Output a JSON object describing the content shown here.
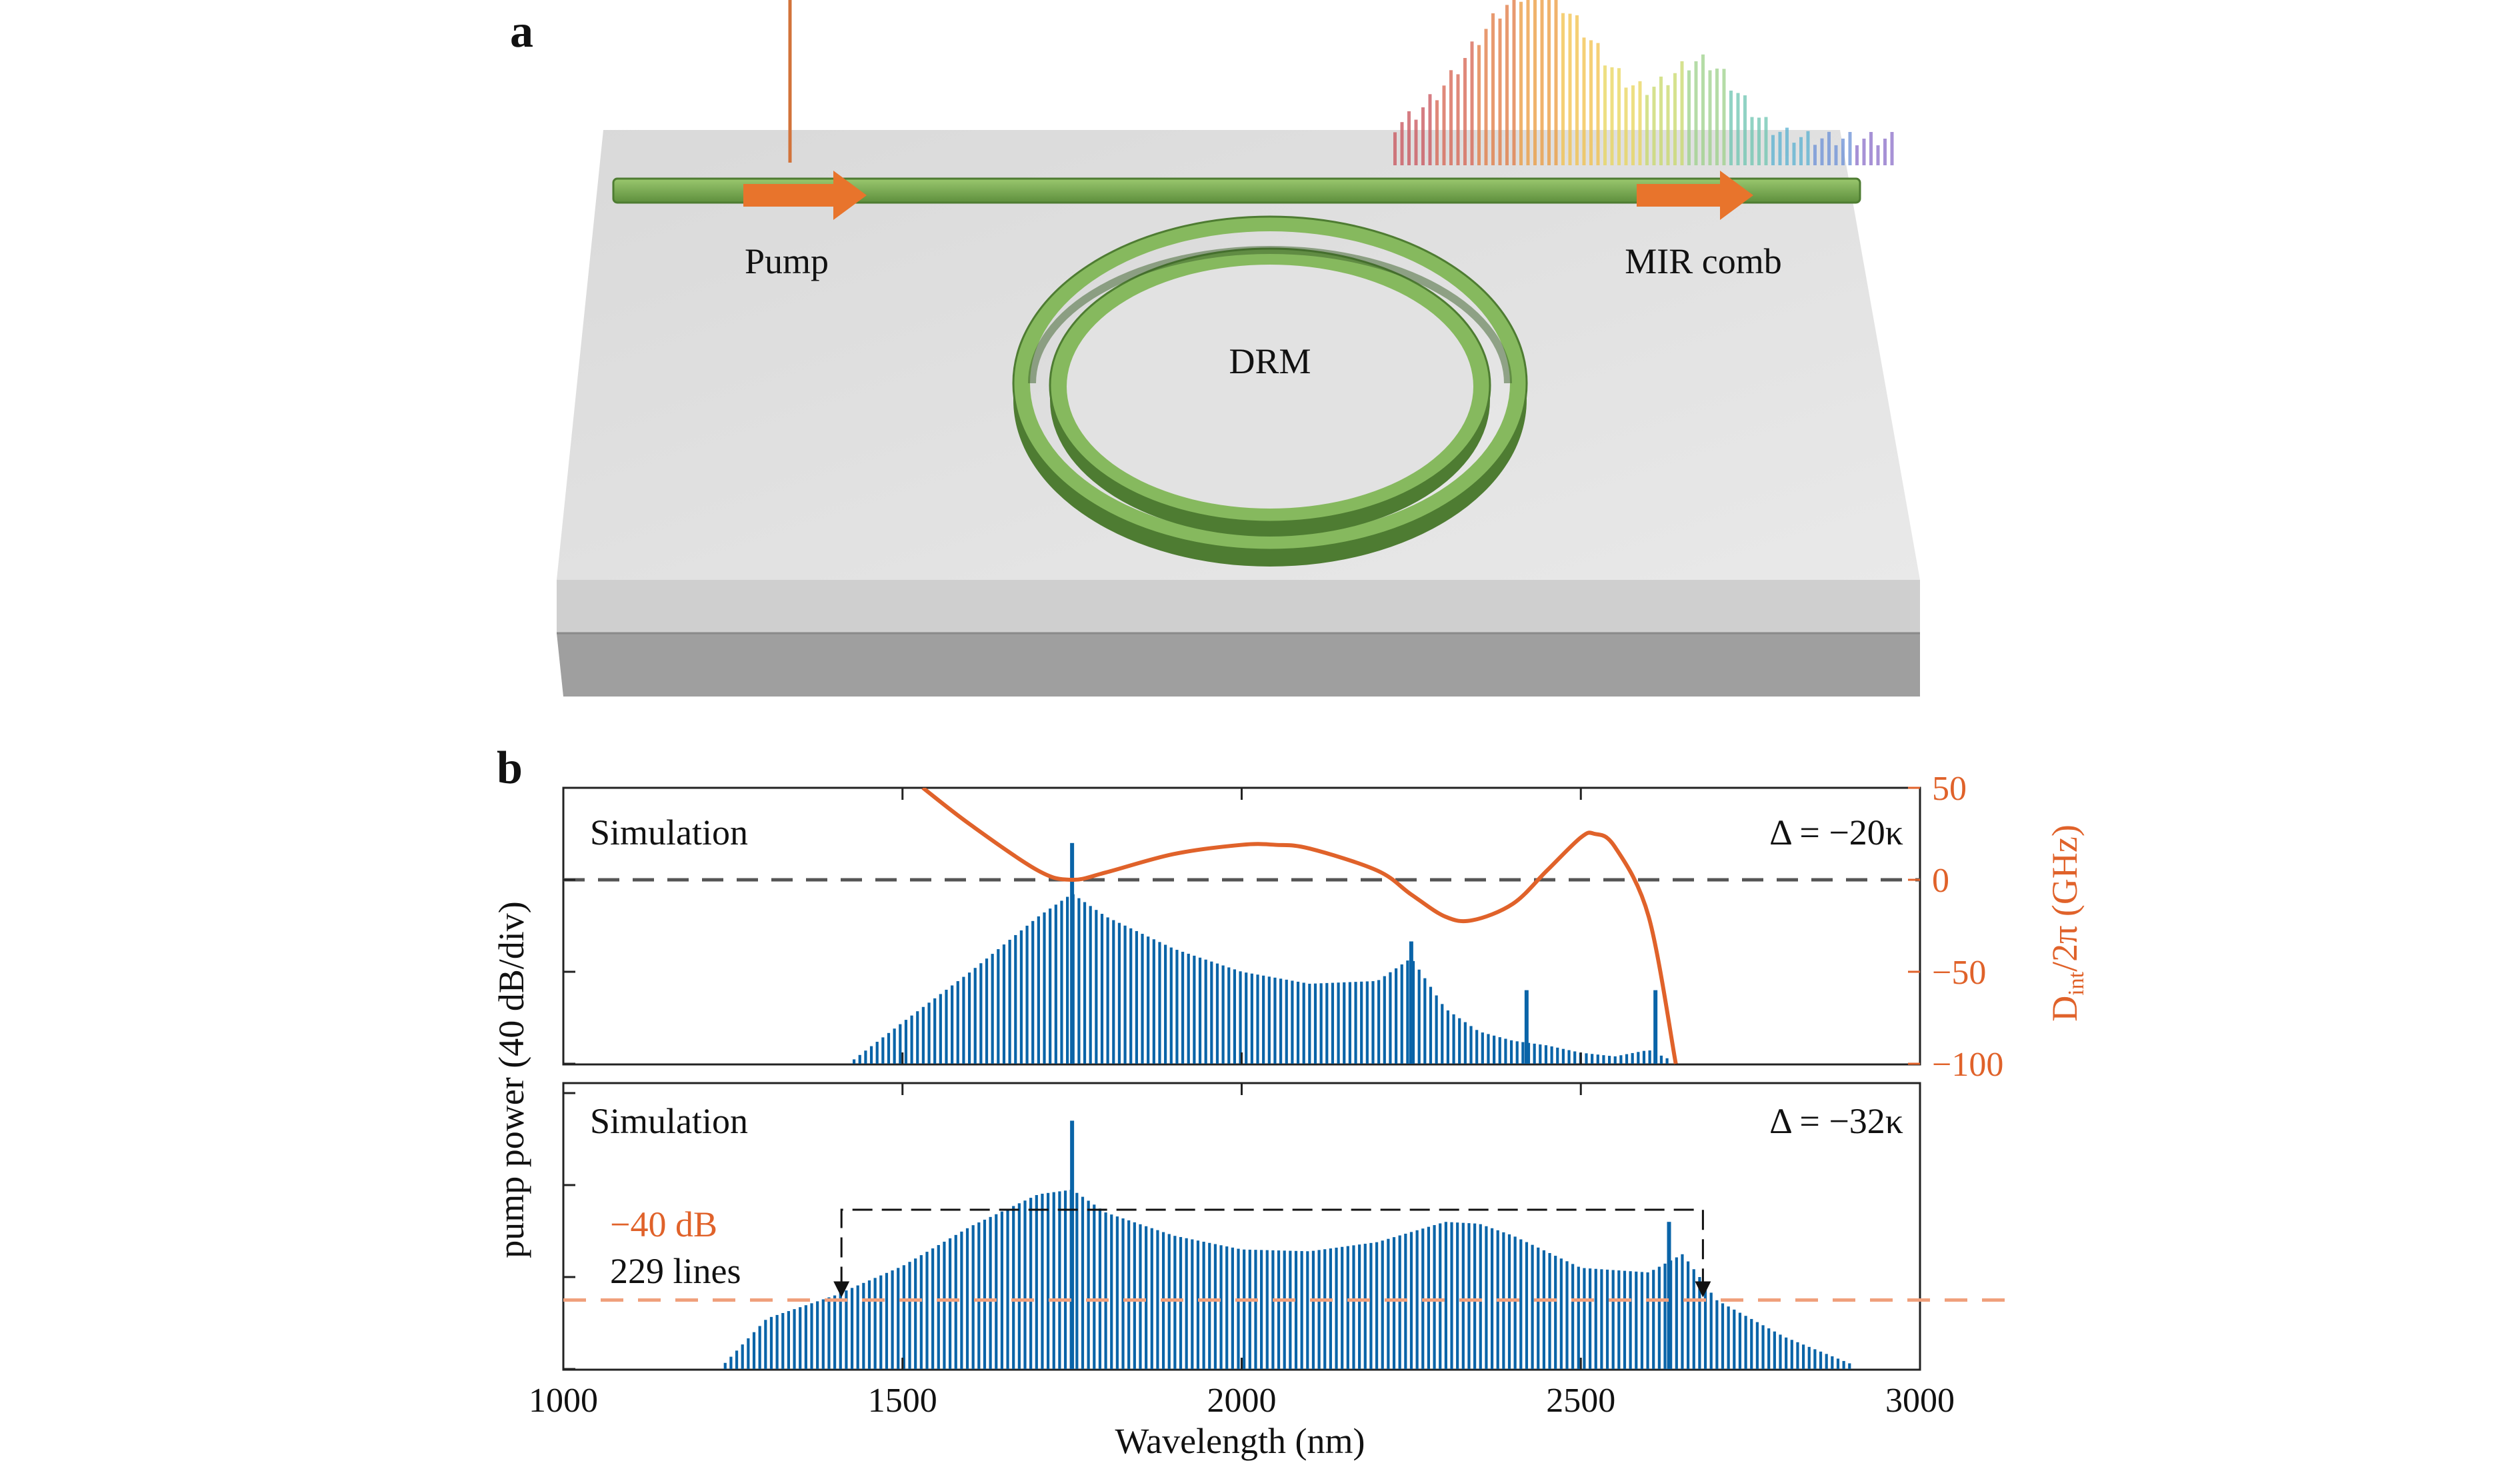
{
  "panel_a": {
    "letter": "a",
    "pump_label": "Pump",
    "comb_label": "MIR comb",
    "ring_label": "DRM",
    "colors": {
      "waveguide": "#79ad4f",
      "arrow": "#e8742c",
      "chip_top": "#e2e2e2",
      "chip_front": "#c8c8c8",
      "chip_bottom": "#9b9b9b"
    }
  },
  "panel_b": {
    "letter": "b",
    "y_label": "pump power (40 dB/div)",
    "x_label": "Wavelength (nm)",
    "right_axis_label_main": "D",
    "right_axis_label_sub": "int",
    "right_axis_label_rest": "/2π (GHz)",
    "top_annotation": "Simulation",
    "top_detuning": "Δ = −20κ",
    "bottom_annotation": "Simulation",
    "bottom_detuning": "Δ = −32κ",
    "threshold_label": "−40 dB",
    "lines_label": "229 lines",
    "colors": {
      "spectrum": "#0a64a8",
      "dispersion": "#e0622a",
      "threshold": "#f0a07c",
      "zero_line": "#555555"
    }
  },
  "chart_data": [
    {
      "type": "bar",
      "title": "",
      "subplot": "top",
      "annotation": "Simulation",
      "detuning": "Δ = −20κ",
      "xlabel": "Wavelength (nm)",
      "ylabel": "pump power (40 dB/div)",
      "xlim": [
        1000,
        3000
      ],
      "x_ticks": [
        1000,
        1500,
        2000,
        2500,
        3000
      ],
      "ylim_divisions": [
        0,
        3
      ],
      "envelope": {
        "x": [
          1420,
          1500,
          1600,
          1700,
          1750,
          1800,
          1900,
          2000,
          2100,
          2200,
          2250,
          2300,
          2350,
          2400,
          2450,
          2500,
          2550,
          2600,
          2630
        ],
        "y": [
          0.0,
          0.45,
          1.0,
          1.6,
          1.85,
          1.6,
          1.25,
          1.0,
          0.87,
          0.9,
          1.15,
          0.6,
          0.35,
          0.25,
          0.2,
          0.12,
          0.08,
          0.15,
          0.05
        ]
      },
      "peaks": [
        {
          "x": 1750,
          "y": 2.4
        },
        {
          "x": 2250,
          "y": 1.33
        },
        {
          "x": 2420,
          "y": 0.8
        },
        {
          "x": 2610,
          "y": 0.8
        }
      ],
      "secondary_axis": {
        "label": "Dint/2π (GHz)",
        "ylim": [
          -100,
          50
        ],
        "ticks": [
          -100,
          -50,
          0,
          50
        ],
        "series": {
          "name": "",
          "x": [
            1530,
            1600,
            1700,
            1750,
            1800,
            1900,
            2000,
            2050,
            2100,
            2200,
            2250,
            2300,
            2340,
            2400,
            2450,
            2500,
            2520,
            2550,
            2600,
            2640
          ],
          "y": [
            50,
            30,
            5,
            0,
            4,
            14,
            19,
            19,
            17,
            5,
            -8,
            -20,
            -22,
            -13,
            5,
            23,
            25,
            18,
            -20,
            -100
          ]
        },
        "zero_line": 0
      }
    },
    {
      "type": "bar",
      "title": "",
      "subplot": "bottom",
      "annotation": "Simulation",
      "detuning": "Δ = −32κ",
      "xlabel": "Wavelength (nm)",
      "ylabel": "pump power (40 dB/div)",
      "xlim": [
        1000,
        3000
      ],
      "x_ticks": [
        1000,
        1500,
        2000,
        2500,
        3000
      ],
      "ylim_divisions": [
        0,
        3
      ],
      "envelope": {
        "x": [
          1230,
          1300,
          1400,
          1500,
          1600,
          1700,
          1750,
          1800,
          1900,
          2000,
          2100,
          2200,
          2300,
          2350,
          2400,
          2500,
          2600,
          2650,
          2700,
          2800,
          2900
        ],
        "y": [
          0.0,
          0.55,
          0.8,
          1.12,
          1.55,
          1.9,
          1.95,
          1.7,
          1.45,
          1.3,
          1.28,
          1.38,
          1.6,
          1.58,
          1.45,
          1.1,
          1.05,
          1.25,
          0.75,
          0.35,
          0.05
        ]
      },
      "peaks": [
        {
          "x": 1750,
          "y": 2.7
        },
        {
          "x": 2630,
          "y": 1.6
        }
      ],
      "threshold": {
        "label": "−40 dB",
        "value": 0.75
      },
      "bandwidth_annotation": {
        "label": "229 lines",
        "x_start": 1410,
        "x_end": 2680
      }
    }
  ]
}
